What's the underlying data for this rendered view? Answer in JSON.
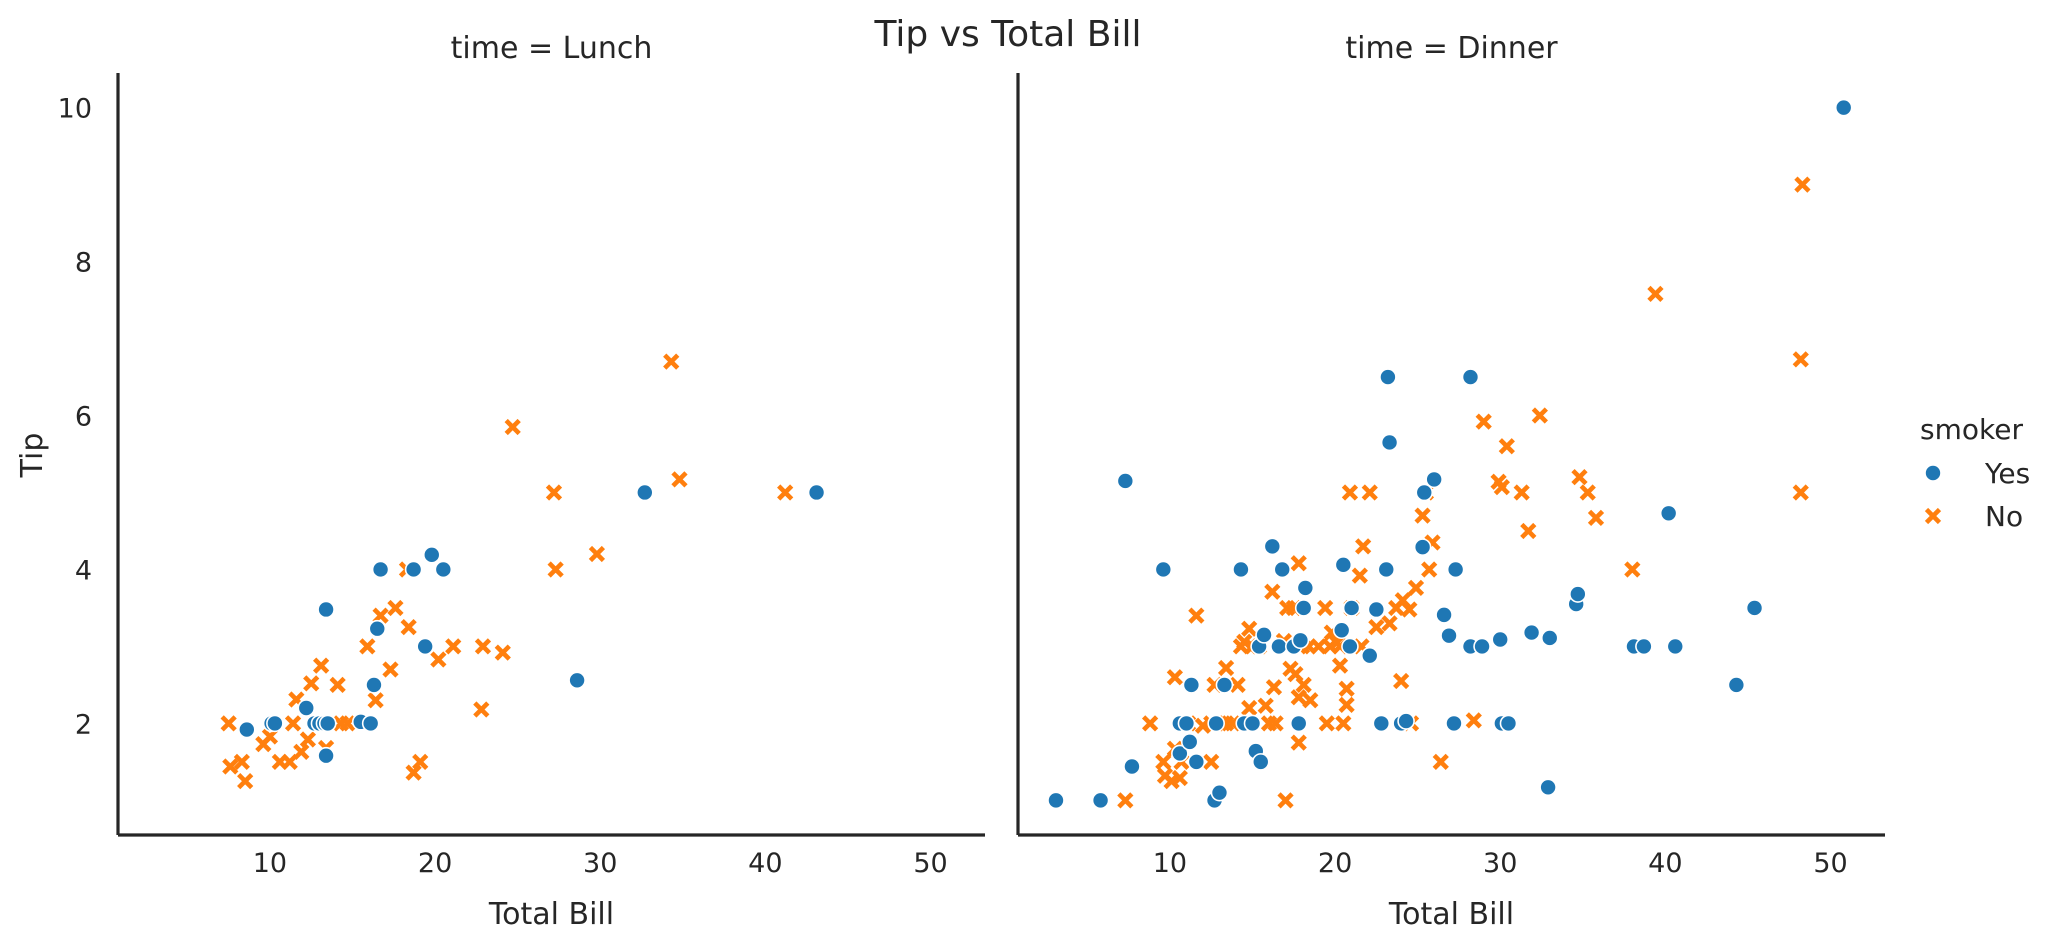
{
  "chart_data": {
    "type": "scatter",
    "title": "Tip vs Total Bill",
    "xlabel": "Total Bill",
    "ylabel": "Tip",
    "xlim": [
      0.8,
      53.3
    ],
    "ylim": [
      0.55,
      10.45
    ],
    "x_ticks": [
      10,
      20,
      30,
      40,
      50
    ],
    "y_ticks": [
      2,
      4,
      6,
      8,
      10
    ],
    "grid": false,
    "legend": {
      "title": "smoker",
      "placement": "right",
      "entries": [
        {
          "label": "Yes",
          "marker": "circle",
          "color": "#1f77b4"
        },
        {
          "label": "No",
          "marker": "x",
          "color": "#ff7f0e"
        }
      ]
    },
    "panels": [
      {
        "title": "time = Lunch",
        "series": [
          {
            "name": "Yes",
            "marker": "circle",
            "color": "#1f77b4",
            "points": [
              [
                8.6,
                1.92
              ],
              [
                10.1,
                2.0
              ],
              [
                10.3,
                2.0
              ],
              [
                12.2,
                2.2
              ],
              [
                12.7,
                2.0
              ],
              [
                13.0,
                2.0
              ],
              [
                13.3,
                2.0
              ],
              [
                13.4,
                1.58
              ],
              [
                13.5,
                2.0
              ],
              [
                13.4,
                3.48
              ],
              [
                15.5,
                2.02
              ],
              [
                16.1,
                2.0
              ],
              [
                16.3,
                2.5
              ],
              [
                16.5,
                3.23
              ],
              [
                16.7,
                4.0
              ],
              [
                18.7,
                4.0
              ],
              [
                19.4,
                3.0
              ],
              [
                19.8,
                4.19
              ],
              [
                20.5,
                4.0
              ],
              [
                28.6,
                2.56
              ],
              [
                32.7,
                5.0
              ],
              [
                43.1,
                5.0
              ]
            ]
          },
          {
            "name": "No",
            "marker": "x",
            "color": "#ff7f0e",
            "points": [
              [
                7.5,
                2.0
              ],
              [
                7.6,
                1.44
              ],
              [
                8.3,
                1.5
              ],
              [
                8.5,
                1.25
              ],
              [
                9.6,
                1.73
              ],
              [
                10.0,
                1.83
              ],
              [
                10.6,
                1.5
              ],
              [
                11.2,
                1.5
              ],
              [
                11.4,
                2.0
              ],
              [
                11.6,
                2.31
              ],
              [
                11.9,
                1.63
              ],
              [
                12.3,
                1.79
              ],
              [
                12.5,
                2.52
              ],
              [
                12.8,
                2.0
              ],
              [
                13.1,
                2.75
              ],
              [
                13.4,
                1.68
              ],
              [
                14.1,
                2.5
              ],
              [
                14.3,
                2.0
              ],
              [
                14.7,
                2.0
              ],
              [
                15.9,
                3.0
              ],
              [
                16.4,
                2.3
              ],
              [
                16.7,
                3.4
              ],
              [
                17.3,
                2.7
              ],
              [
                17.6,
                3.5
              ],
              [
                18.3,
                4.0
              ],
              [
                18.4,
                3.25
              ],
              [
                18.7,
                1.36
              ],
              [
                19.1,
                1.5
              ],
              [
                20.2,
                2.83
              ],
              [
                21.1,
                3.0
              ],
              [
                22.8,
                2.18
              ],
              [
                22.9,
                3.0
              ],
              [
                24.1,
                2.92
              ],
              [
                24.7,
                5.85
              ],
              [
                27.2,
                5.0
              ],
              [
                27.3,
                4.0
              ],
              [
                29.8,
                4.2
              ],
              [
                34.3,
                6.7
              ],
              [
                34.8,
                5.17
              ],
              [
                41.2,
                5.0
              ]
            ]
          }
        ]
      },
      {
        "title": "time = Dinner",
        "series": [
          {
            "name": "Yes",
            "marker": "circle",
            "color": "#1f77b4",
            "points": [
              [
                3.1,
                1.0
              ],
              [
                5.8,
                1.0
              ],
              [
                7.3,
                5.15
              ],
              [
                7.7,
                1.44
              ],
              [
                9.6,
                4.0
              ],
              [
                10.6,
                1.61
              ],
              [
                10.6,
                2.0
              ],
              [
                11.0,
                2.0
              ],
              [
                11.2,
                1.76
              ],
              [
                11.3,
                2.5
              ],
              [
                11.6,
                1.5
              ],
              [
                12.7,
                1.0
              ],
              [
                12.8,
                2.0
              ],
              [
                13.0,
                1.1
              ],
              [
                13.3,
                2.5
              ],
              [
                14.3,
                4.0
              ],
              [
                14.5,
                2.0
              ],
              [
                15.0,
                2.0
              ],
              [
                15.2,
                1.64
              ],
              [
                15.4,
                3.0
              ],
              [
                15.5,
                1.5
              ],
              [
                15.7,
                3.15
              ],
              [
                16.2,
                4.3
              ],
              [
                16.6,
                3.0
              ],
              [
                16.8,
                4.0
              ],
              [
                17.5,
                3.0
              ],
              [
                17.8,
                2.0
              ],
              [
                17.9,
                3.08
              ],
              [
                18.1,
                3.5
              ],
              [
                18.2,
                3.76
              ],
              [
                20.4,
                3.21
              ],
              [
                20.5,
                4.06
              ],
              [
                20.9,
                3.0
              ],
              [
                21.0,
                3.5
              ],
              [
                22.1,
                2.88
              ],
              [
                22.5,
                3.48
              ],
              [
                22.8,
                2.0
              ],
              [
                23.1,
                4.0
              ],
              [
                23.2,
                6.5
              ],
              [
                23.3,
                5.65
              ],
              [
                24.0,
                2.0
              ],
              [
                24.3,
                2.03
              ],
              [
                25.3,
                4.29
              ],
              [
                25.4,
                5.0
              ],
              [
                26.0,
                5.17
              ],
              [
                26.6,
                3.41
              ],
              [
                26.9,
                3.14
              ],
              [
                27.2,
                2.0
              ],
              [
                27.3,
                4.0
              ],
              [
                28.2,
                6.5
              ],
              [
                28.2,
                3.0
              ],
              [
                28.9,
                3.0
              ],
              [
                30.0,
                3.09
              ],
              [
                30.1,
                2.0
              ],
              [
                30.5,
                2.0
              ],
              [
                31.9,
                3.18
              ],
              [
                32.9,
                1.17
              ],
              [
                33.0,
                3.11
              ],
              [
                34.6,
                3.55
              ],
              [
                34.7,
                3.68
              ],
              [
                38.1,
                3.0
              ],
              [
                38.7,
                3.0
              ],
              [
                40.2,
                4.73
              ],
              [
                40.6,
                3.0
              ],
              [
                44.3,
                2.5
              ],
              [
                45.4,
                3.5
              ],
              [
                50.8,
                10.0
              ]
            ]
          },
          {
            "name": "No",
            "marker": "x",
            "color": "#ff7f0e",
            "points": [
              [
                7.3,
                1.0
              ],
              [
                8.8,
                2.0
              ],
              [
                9.6,
                1.5
              ],
              [
                9.7,
                1.32
              ],
              [
                10.1,
                1.25
              ],
              [
                10.3,
                1.67
              ],
              [
                10.3,
                2.6
              ],
              [
                10.6,
                1.29
              ],
              [
                10.7,
                1.5
              ],
              [
                11.1,
                2.0
              ],
              [
                11.6,
                3.4
              ],
              [
                12.0,
                1.97
              ],
              [
                12.5,
                1.5
              ],
              [
                12.5,
                2.0
              ],
              [
                12.7,
                2.5
              ],
              [
                13.0,
                2.0
              ],
              [
                13.4,
                2.0
              ],
              [
                13.4,
                2.72
              ],
              [
                13.8,
                2.0
              ],
              [
                14.1,
                2.5
              ],
              [
                14.3,
                3.0
              ],
              [
                14.5,
                3.06
              ],
              [
                14.8,
                2.2
              ],
              [
                14.8,
                3.23
              ],
              [
                15.0,
                3.0
              ],
              [
                15.4,
                3.0
              ],
              [
                15.8,
                2.23
              ],
              [
                16.0,
                2.0
              ],
              [
                16.2,
                3.71
              ],
              [
                16.3,
                2.47
              ],
              [
                16.4,
                2.0
              ],
              [
                16.9,
                3.07
              ],
              [
                17.0,
                1.0
              ],
              [
                17.1,
                3.5
              ],
              [
                17.1,
                3.0
              ],
              [
                17.3,
                2.71
              ],
              [
                17.5,
                3.5
              ],
              [
                17.6,
                2.64
              ],
              [
                17.8,
                2.34
              ],
              [
                17.8,
                1.75
              ],
              [
                17.8,
                4.08
              ],
              [
                18.0,
                3.0
              ],
              [
                18.1,
                2.5
              ],
              [
                18.4,
                3.0
              ],
              [
                18.5,
                2.3
              ],
              [
                19.0,
                3.0
              ],
              [
                19.4,
                3.5
              ],
              [
                19.5,
                2.0
              ],
              [
                19.7,
                3.0
              ],
              [
                19.8,
                3.18
              ],
              [
                20.1,
                3.05
              ],
              [
                20.3,
                3.0
              ],
              [
                20.3,
                2.75
              ],
              [
                20.5,
                2.0
              ],
              [
                20.7,
                2.45
              ],
              [
                20.7,
                2.24
              ],
              [
                20.9,
                5.0
              ],
              [
                21.0,
                3.5
              ],
              [
                21.5,
                3.92
              ],
              [
                21.6,
                3.0
              ],
              [
                21.7,
                4.3
              ],
              [
                22.1,
                5.0
              ],
              [
                22.5,
                3.25
              ],
              [
                23.3,
                3.3
              ],
              [
                23.7,
                3.5
              ],
              [
                24.0,
                2.55
              ],
              [
                24.1,
                3.6
              ],
              [
                24.5,
                3.48
              ],
              [
                24.6,
                2.0
              ],
              [
                24.9,
                3.76
              ],
              [
                25.3,
                4.7
              ],
              [
                25.5,
                5.0
              ],
              [
                25.7,
                4.0
              ],
              [
                25.9,
                4.35
              ],
              [
                26.4,
                1.5
              ],
              [
                28.4,
                2.04
              ],
              [
                29.0,
                5.92
              ],
              [
                29.9,
                5.14
              ],
              [
                30.1,
                5.07
              ],
              [
                30.4,
                5.6
              ],
              [
                31.3,
                5.0
              ],
              [
                31.7,
                4.5
              ],
              [
                32.4,
                6.0
              ],
              [
                34.8,
                5.2
              ],
              [
                35.3,
                5.0
              ],
              [
                35.8,
                4.67
              ],
              [
                38.0,
                4.0
              ],
              [
                39.4,
                7.58
              ],
              [
                48.2,
                5.0
              ],
              [
                48.2,
                6.73
              ],
              [
                48.3,
                9.0
              ]
            ]
          }
        ]
      }
    ]
  }
}
